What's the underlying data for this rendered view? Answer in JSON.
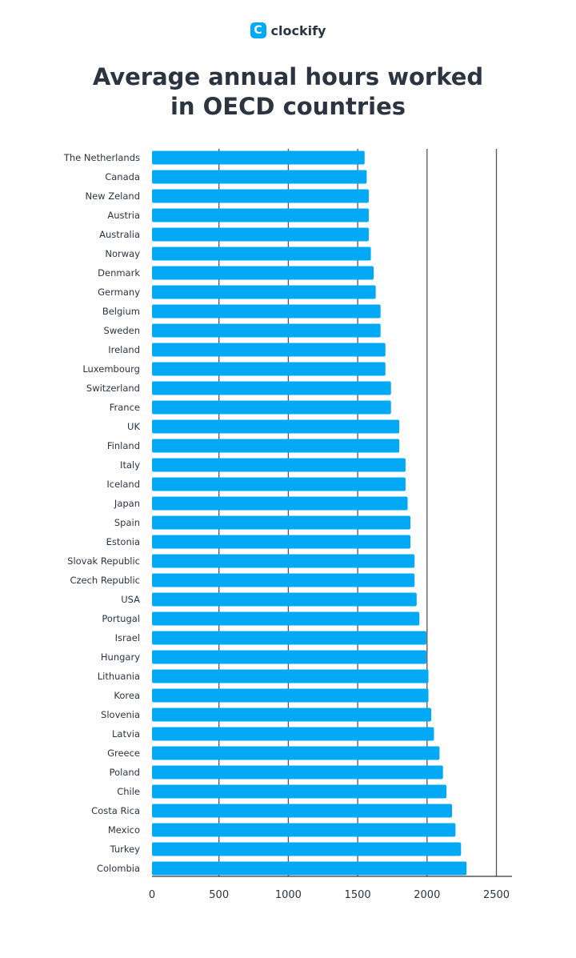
{
  "brand": {
    "name": "clockify",
    "accent": "#03a9f4"
  },
  "chart_data": {
    "type": "bar",
    "orientation": "horizontal",
    "title_lines": [
      "Average annual hours worked",
      "in OECD countries"
    ],
    "categories": [
      "The Netherlands",
      "Canada",
      "New Zeland",
      "Austria",
      "Australia",
      "Norway",
      "Denmark",
      "Germany",
      "Belgium",
      "Sweden",
      "Ireland",
      "Luxembourg",
      "Switzerland",
      "France",
      "UK",
      "Finland",
      "Italy",
      "Iceland",
      "Japan",
      "Spain",
      "Estonia",
      "Slovak Republic",
      "Czech Republic",
      "USA",
      "Portugal",
      "Israel",
      "Hungary",
      "Lithuania",
      "Korea",
      "Slovenia",
      "Latvia",
      "Greece",
      "Poland",
      "Chile",
      "Costa Rica",
      "Mexico",
      "Turkey",
      "Colombia"
    ],
    "values": [
      1550,
      1565,
      1580,
      1580,
      1580,
      1595,
      1615,
      1630,
      1665,
      1665,
      1700,
      1700,
      1740,
      1740,
      1800,
      1800,
      1845,
      1845,
      1860,
      1880,
      1880,
      1910,
      1910,
      1925,
      1945,
      1995,
      1995,
      2010,
      2010,
      2030,
      2050,
      2090,
      2115,
      2140,
      2180,
      2205,
      2245,
      2285
    ],
    "xlim": [
      0,
      2500
    ],
    "xticks": [
      "0",
      "500",
      "1000",
      "1500",
      "2000",
      "2500"
    ],
    "grid": true,
    "bar_color": "#03a9f4",
    "xlabel": "",
    "ylabel": ""
  }
}
